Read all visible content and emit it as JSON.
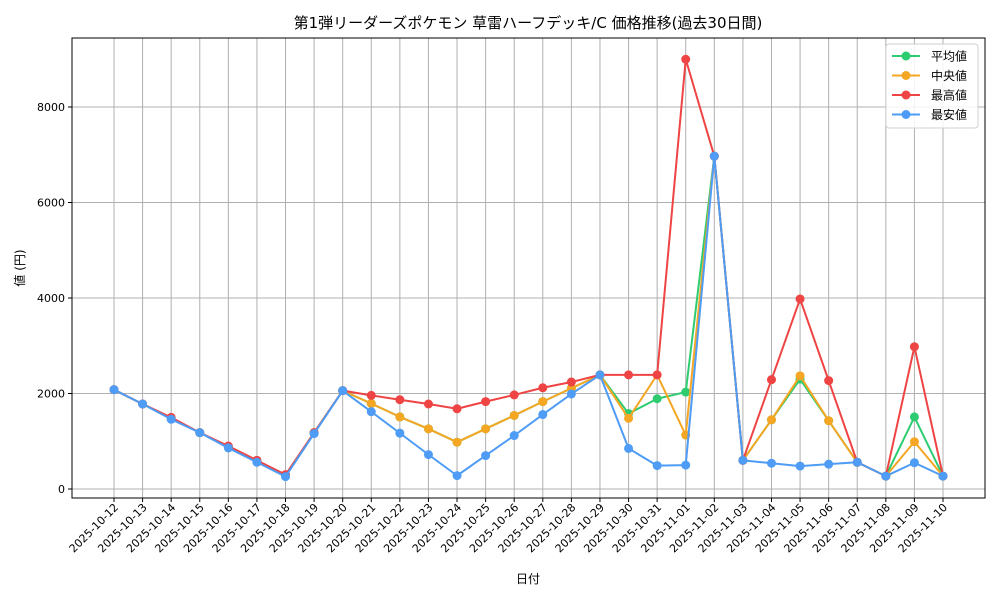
{
  "chart_data": {
    "type": "line",
    "title": "第1弾リーダーズポケモン 草雷ハーフデッキ/C 価格推移(過去30日間)",
    "xlabel": "日付",
    "ylabel": "値 (円)",
    "ylim": [
      -200,
      9400
    ],
    "yticks": [
      0,
      2000,
      4000,
      6000,
      8000
    ],
    "grid": true,
    "legend_position": "upper right",
    "categories": [
      "2025-10-12",
      "2025-10-13",
      "2025-10-14",
      "2025-10-15",
      "2025-10-16",
      "2025-10-17",
      "2025-10-18",
      "2025-10-19",
      "2025-10-20",
      "2025-10-21",
      "2025-10-22",
      "2025-10-23",
      "2025-10-24",
      "2025-10-25",
      "2025-10-26",
      "2025-10-27",
      "2025-10-28",
      "2025-10-29",
      "2025-10-30",
      "2025-10-31",
      "2025-11-01",
      "2025-11-02",
      "2025-11-03",
      "2025-11-04",
      "2025-11-05",
      "2025-11-06",
      "2025-11-07",
      "2025-11-08",
      "2025-11-09",
      "2025-11-10"
    ],
    "series": [
      {
        "name": "平均値",
        "color": "#2ecc71",
        "values": [
          2080,
          1780,
          1480,
          1180,
          880,
          580,
          280,
          1180,
          2060,
          1790,
          1510,
          1260,
          980,
          1260,
          1540,
          1830,
          2110,
          2390,
          1580,
          1890,
          2030,
          6970,
          600,
          1450,
          2300,
          1430,
          560,
          270,
          1510,
          270
        ]
      },
      {
        "name": "中央値",
        "color": "#f5a623",
        "values": [
          2080,
          1780,
          1480,
          1180,
          880,
          580,
          280,
          1180,
          2060,
          1790,
          1510,
          1260,
          980,
          1260,
          1540,
          1830,
          2110,
          2390,
          1480,
          2390,
          1130,
          6970,
          600,
          1450,
          2370,
          1430,
          560,
          270,
          990,
          270
        ]
      },
      {
        "name": "最高値",
        "color": "#ef4444",
        "values": [
          2080,
          1780,
          1500,
          1180,
          900,
          600,
          300,
          1180,
          2060,
          1960,
          1870,
          1780,
          1680,
          1830,
          1970,
          2120,
          2240,
          2390,
          2390,
          2390,
          9000,
          6970,
          600,
          2290,
          3980,
          2270,
          560,
          270,
          2980,
          270
        ]
      },
      {
        "name": "最安値",
        "color": "#4e9cf5",
        "values": [
          2080,
          1780,
          1460,
          1180,
          860,
          560,
          260,
          1160,
          2060,
          1620,
          1170,
          720,
          280,
          700,
          1120,
          1560,
          1990,
          2390,
          850,
          490,
          500,
          6970,
          600,
          540,
          480,
          520,
          560,
          270,
          550,
          270
        ]
      }
    ]
  }
}
